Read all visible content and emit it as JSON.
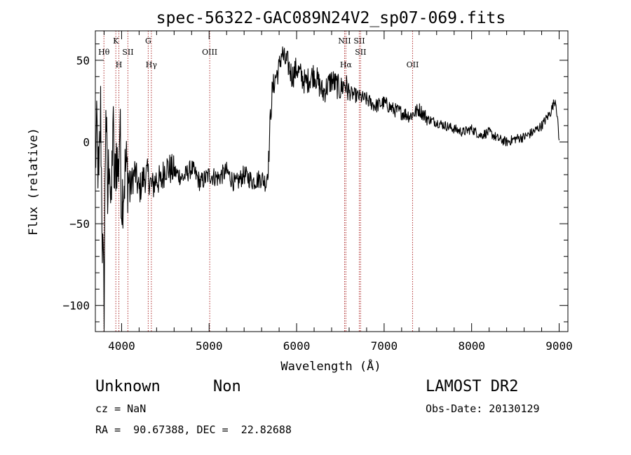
{
  "chart_data": {
    "type": "line",
    "title": "spec-56322-GAC089N24V2_sp07-069.fits",
    "xlabel": "Wavelength (Å)",
    "ylabel": "Flux (relative)",
    "xlim": [
      3700,
      9100
    ],
    "ylim": [
      -116,
      68
    ],
    "xticks": [
      4000,
      5000,
      6000,
      7000,
      8000,
      9000
    ],
    "yticks": [
      -100,
      -50,
      0,
      50
    ],
    "grid": false,
    "legend": "none",
    "line_color": "#000000",
    "marker_color": "#b03030",
    "series": [
      {
        "x": [
          3700,
          3720,
          3740,
          3760,
          3780,
          3800,
          3820,
          3840,
          3860,
          3880,
          3900,
          3920,
          3940,
          3960,
          3980,
          4000,
          4050,
          4100,
          4150,
          4200,
          4250,
          4300,
          4350,
          4400,
          4450,
          4500,
          4600,
          4700,
          4800,
          4900,
          5000,
          5100,
          5200,
          5300,
          5400,
          5500,
          5600,
          5650,
          5680,
          5700,
          5720,
          5750,
          5800,
          5830,
          5860,
          5900,
          5950,
          6000,
          6100,
          6200,
          6300,
          6400,
          6500,
          6550,
          6600,
          6700,
          6800,
          6900,
          7000,
          7100,
          7200,
          7300,
          7400,
          7500,
          7600,
          7700,
          7800,
          7900,
          8000,
          8100,
          8200,
          8300,
          8400,
          8500,
          8600,
          8700,
          8800,
          8850,
          8900,
          8940,
          8960,
          8980,
          9000
        ],
        "y": [
          -10,
          5,
          -30,
          20,
          -60,
          -100,
          30,
          -40,
          0,
          -50,
          15,
          -30,
          -5,
          -20,
          10,
          -35,
          -15,
          -28,
          -18,
          -30,
          -22,
          -20,
          -28,
          -22,
          -25,
          -15,
          -18,
          -22,
          -16,
          -25,
          -20,
          -22,
          -18,
          -26,
          -20,
          -24,
          -22,
          -25,
          -12,
          15,
          30,
          38,
          45,
          55,
          50,
          48,
          40,
          45,
          36,
          42,
          30,
          38,
          32,
          36,
          30,
          28,
          26,
          22,
          24,
          20,
          18,
          16,
          20,
          14,
          12,
          10,
          8,
          6,
          8,
          4,
          6,
          2,
          0,
          2,
          3,
          6,
          10,
          14,
          18,
          24,
          26,
          15,
          0
        ]
      }
    ],
    "line_markers": [
      {
        "label": "Hθ",
        "x": 3798,
        "row": 2
      },
      {
        "label": "K",
        "x": 3934,
        "row": 1
      },
      {
        "label": "H",
        "x": 3969,
        "row": 3
      },
      {
        "label": "SII",
        "x": 4072,
        "row": 2
      },
      {
        "label": "G",
        "x": 4304,
        "row": 1
      },
      {
        "label": "Hγ",
        "x": 4340,
        "row": 3
      },
      {
        "label": "OIII",
        "x": 5007,
        "row": 2
      },
      {
        "label": "NII",
        "x": 6548,
        "row": 1
      },
      {
        "label": "Hα",
        "x": 6563,
        "row": 3
      },
      {
        "label": "SII",
        "x": 6716,
        "row": 1
      },
      {
        "label": "SII",
        "x": 6731,
        "row": 2
      },
      {
        "label": "OII",
        "x": 7325,
        "row": 3
      }
    ]
  },
  "info": {
    "class": "Unknown",
    "subclass": "Non",
    "cz": "cz = NaN",
    "coords": "RA =  90.67388, DEC =  22.82688",
    "survey": "LAMOST DR2",
    "obs_date": "Obs-Date: 20130129"
  }
}
